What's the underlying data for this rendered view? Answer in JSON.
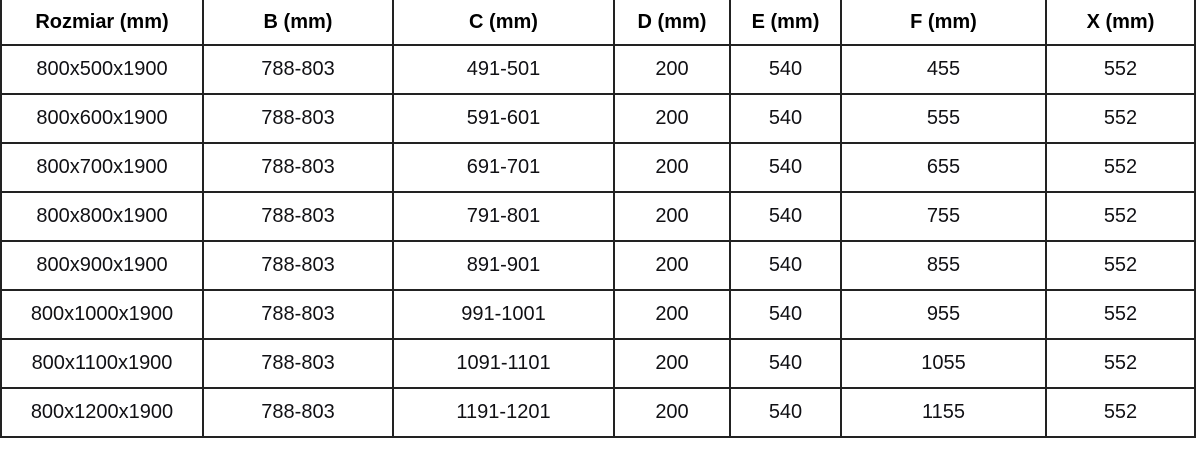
{
  "table": {
    "unit": "mm",
    "columns": [
      "Rozmiar (mm)",
      "B (mm)",
      "C (mm)",
      "D (mm)",
      "E (mm)",
      "F (mm)",
      "X (mm)"
    ],
    "rows": [
      [
        "800x500x1900",
        "788-803",
        "491-501",
        "200",
        "540",
        "455",
        "552"
      ],
      [
        "800x600x1900",
        "788-803",
        "591-601",
        "200",
        "540",
        "555",
        "552"
      ],
      [
        "800x700x1900",
        "788-803",
        "691-701",
        "200",
        "540",
        "655",
        "552"
      ],
      [
        "800x800x1900",
        "788-803",
        "791-801",
        "200",
        "540",
        "755",
        "552"
      ],
      [
        "800x900x1900",
        "788-803",
        "891-901",
        "200",
        "540",
        "855",
        "552"
      ],
      [
        "800x1000x1900",
        "788-803",
        "991-1001",
        "200",
        "540",
        "955",
        "552"
      ],
      [
        "800x1100x1900",
        "788-803",
        "1091-1101",
        "200",
        "540",
        "1055",
        "552"
      ],
      [
        "800x1200x1900",
        "788-803",
        "1191-1201",
        "200",
        "540",
        "1155",
        "552"
      ]
    ]
  },
  "colors": {
    "border": "#222222",
    "header_text": "#000000",
    "cell_text": "#101014",
    "background": "#ffffff"
  }
}
